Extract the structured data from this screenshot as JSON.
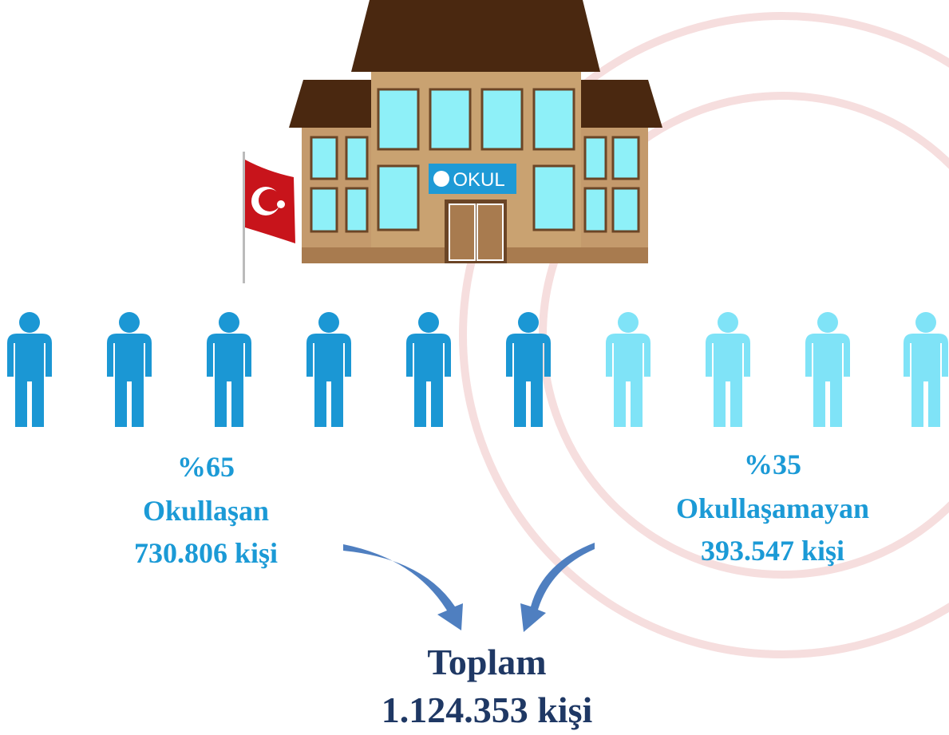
{
  "sign": "OKUL",
  "groups": [
    {
      "percent": "%65",
      "label": "Okullaşan",
      "count": "730.806 kişi"
    },
    {
      "percent": "%35",
      "label": "Okullaşamayan",
      "count": "393.547 kişi"
    }
  ],
  "total": {
    "label": "Toplam",
    "count": "1.124.353 kişi"
  }
}
